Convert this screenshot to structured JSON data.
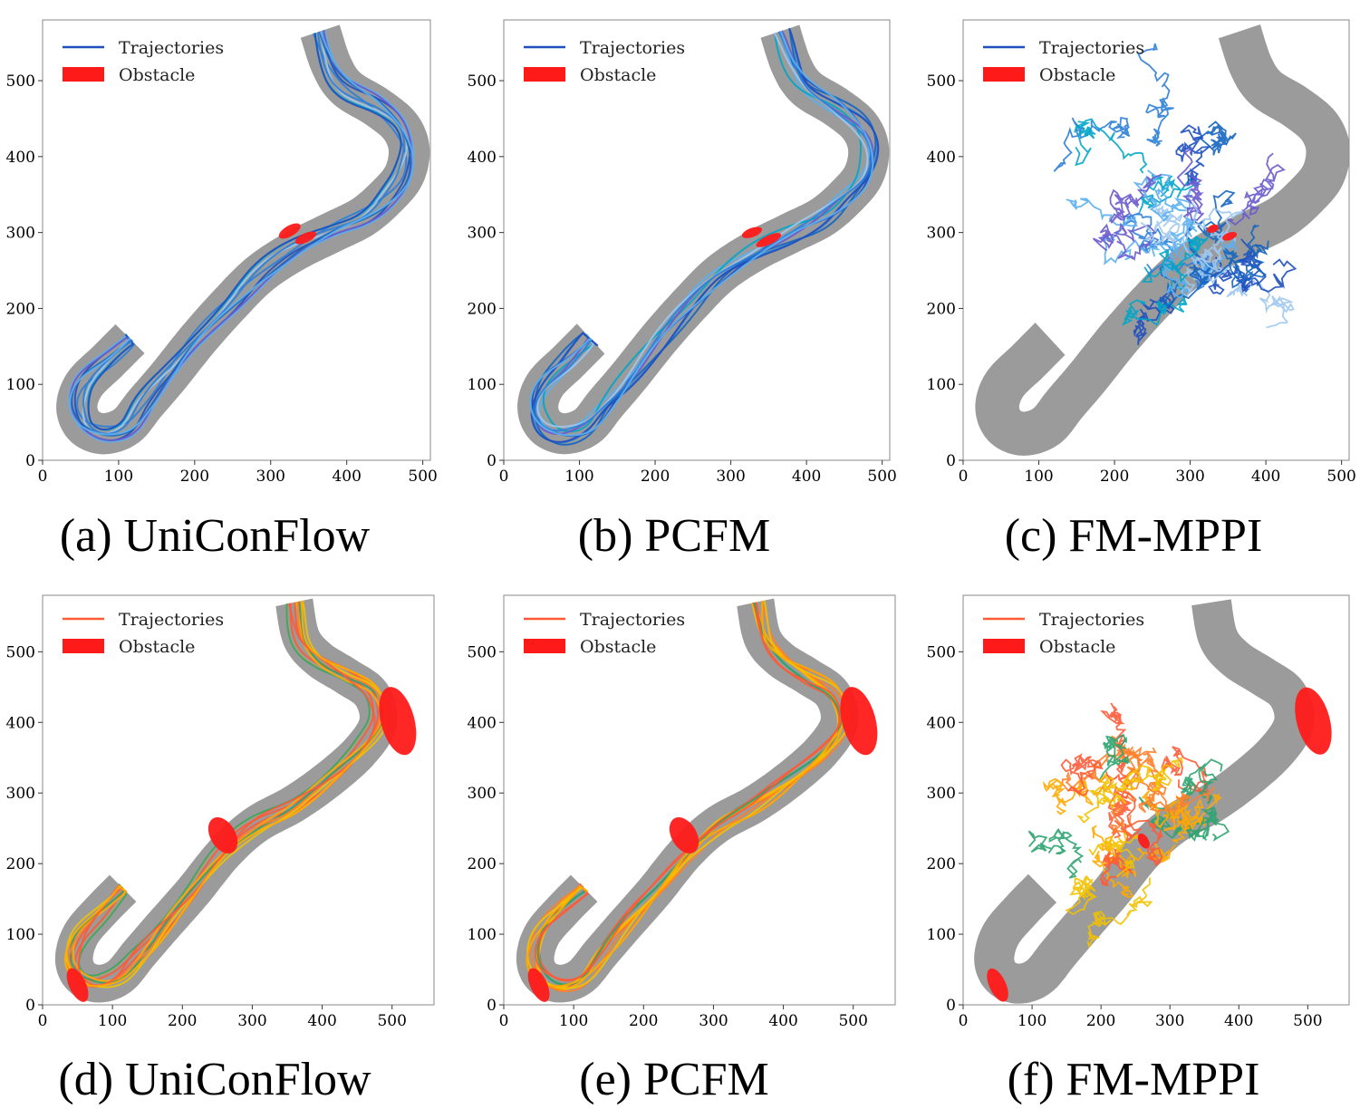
{
  "panels": [
    {
      "id": "a",
      "caption": "(a) UniConFlow",
      "scheme": "blue",
      "mode": "track",
      "obstacles": "a"
    },
    {
      "id": "b",
      "caption": "(b) PCFM",
      "scheme": "blue",
      "mode": "track",
      "obstacles": "b"
    },
    {
      "id": "c",
      "caption": "(c) FM-MPPI",
      "scheme": "blue",
      "mode": "scatter",
      "obstacles": "c"
    },
    {
      "id": "d",
      "caption": "(d) UniConFlow",
      "scheme": "orange",
      "mode": "track",
      "obstacles": "def"
    },
    {
      "id": "e",
      "caption": "(e) PCFM",
      "scheme": "orange",
      "mode": "track",
      "obstacles": "def"
    },
    {
      "id": "f",
      "caption": "(f) FM-MPPI",
      "scheme": "orange",
      "mode": "scatter",
      "obstacles": "def"
    }
  ],
  "legend": {
    "trajectories": "Trajectories",
    "obstacle": "Obstacle"
  },
  "colors": {
    "road": "#9b9b9b",
    "obstacle": "#ff1a1a",
    "blue_series": [
      "#1f4fbf",
      "#2e7fd8",
      "#5bb0ef",
      "#00a6c8",
      "#6a5acd",
      "#9ec8f0",
      "#1565c0"
    ],
    "orange_series": [
      "#ff5a36",
      "#ffaa00",
      "#2ca470",
      "#ff7f2a",
      "#f2c200"
    ]
  },
  "chart_data": [
    {
      "type": "line",
      "panel": "a",
      "xlim": [
        0,
        510
      ],
      "ylim": [
        0,
        580
      ],
      "xticks": [
        0,
        100,
        200,
        300,
        400,
        500
      ],
      "yticks": [
        0,
        100,
        200,
        300,
        400,
        500
      ],
      "road_centerline": [
        [
          115,
          160
        ],
        [
          85,
          130
        ],
        [
          55,
          100
        ],
        [
          45,
          70
        ],
        [
          55,
          45
        ],
        [
          80,
          35
        ],
        [
          110,
          45
        ],
        [
          135,
          75
        ],
        [
          165,
          110
        ],
        [
          205,
          160
        ],
        [
          245,
          205
        ],
        [
          285,
          245
        ],
        [
          330,
          275
        ],
        [
          380,
          300
        ],
        [
          420,
          320
        ],
        [
          450,
          345
        ],
        [
          475,
          375
        ],
        [
          482,
          410
        ],
        [
          470,
          440
        ],
        [
          440,
          465
        ],
        [
          400,
          490
        ],
        [
          380,
          520
        ],
        [
          365,
          565
        ]
      ],
      "obstacles": [
        {
          "cx": 325,
          "cy": 302,
          "rx": 16,
          "ry": 7,
          "angle": 30
        },
        {
          "cx": 346,
          "cy": 293,
          "rx": 15,
          "ry": 6,
          "angle": 25
        }
      ]
    },
    {
      "type": "line",
      "panel": "b",
      "xlim": [
        0,
        510
      ],
      "ylim": [
        0,
        580
      ],
      "xticks": [
        0,
        100,
        200,
        300,
        400,
        500
      ],
      "yticks": [
        0,
        100,
        200,
        300,
        400,
        500
      ],
      "obstacles": [
        {
          "cx": 328,
          "cy": 300,
          "rx": 14,
          "ry": 6,
          "angle": 20
        },
        {
          "cx": 350,
          "cy": 290,
          "rx": 18,
          "ry": 6,
          "angle": 25
        }
      ]
    },
    {
      "type": "scatter",
      "panel": "c",
      "xlim": [
        0,
        510
      ],
      "ylim": [
        0,
        580
      ],
      "xticks": [
        0,
        100,
        200,
        300,
        400,
        500
      ],
      "yticks": [
        0,
        100,
        200,
        300,
        400,
        500
      ],
      "obstacles": [
        {
          "cx": 330,
          "cy": 305,
          "rx": 8,
          "ry": 5,
          "angle": 20
        },
        {
          "cx": 352,
          "cy": 295,
          "rx": 10,
          "ry": 5,
          "angle": 20
        }
      ]
    },
    {
      "type": "line",
      "panel": "d",
      "xlim": [
        0,
        560
      ],
      "ylim": [
        0,
        580
      ],
      "xticks": [
        0,
        100,
        200,
        300,
        400,
        500
      ],
      "yticks": [
        0,
        100,
        200,
        300,
        400,
        500
      ],
      "road_centerline": [
        [
          115,
          165
        ],
        [
          85,
          135
        ],
        [
          55,
          100
        ],
        [
          45,
          65
        ],
        [
          55,
          40
        ],
        [
          80,
          30
        ],
        [
          110,
          40
        ],
        [
          140,
          75
        ],
        [
          175,
          115
        ],
        [
          215,
          160
        ],
        [
          260,
          215
        ],
        [
          305,
          255
        ],
        [
          360,
          285
        ],
        [
          410,
          320
        ],
        [
          455,
          360
        ],
        [
          480,
          400
        ],
        [
          470,
          440
        ],
        [
          435,
          465
        ],
        [
          395,
          490
        ],
        [
          370,
          520
        ],
        [
          360,
          570
        ]
      ],
      "obstacles": [
        {
          "cx": 50,
          "cy": 28,
          "rx": 12,
          "ry": 26,
          "angle": 25
        },
        {
          "cx": 258,
          "cy": 240,
          "rx": 18,
          "ry": 28,
          "angle": 30
        },
        {
          "cx": 508,
          "cy": 402,
          "rx": 24,
          "ry": 50,
          "angle": 15
        }
      ]
    },
    {
      "type": "line",
      "panel": "e",
      "xlim": [
        0,
        560
      ],
      "ylim": [
        0,
        580
      ],
      "xticks": [
        0,
        100,
        200,
        300,
        400,
        500
      ],
      "yticks": [
        0,
        100,
        200,
        300,
        400,
        500
      ],
      "obstacles": [
        {
          "cx": 50,
          "cy": 28,
          "rx": 12,
          "ry": 26,
          "angle": 25
        },
        {
          "cx": 258,
          "cy": 240,
          "rx": 18,
          "ry": 28,
          "angle": 30
        },
        {
          "cx": 508,
          "cy": 402,
          "rx": 24,
          "ry": 50,
          "angle": 15
        }
      ]
    },
    {
      "type": "scatter",
      "panel": "f",
      "xlim": [
        0,
        560
      ],
      "ylim": [
        0,
        580
      ],
      "xticks": [
        0,
        100,
        200,
        300,
        400,
        500
      ],
      "yticks": [
        0,
        100,
        200,
        300,
        400,
        500
      ],
      "obstacles": [
        {
          "cx": 50,
          "cy": 28,
          "rx": 12,
          "ry": 26,
          "angle": 25
        },
        {
          "cx": 262,
          "cy": 232,
          "rx": 7,
          "ry": 12,
          "angle": 30
        },
        {
          "cx": 508,
          "cy": 402,
          "rx": 24,
          "ry": 50,
          "angle": 15
        }
      ]
    }
  ]
}
